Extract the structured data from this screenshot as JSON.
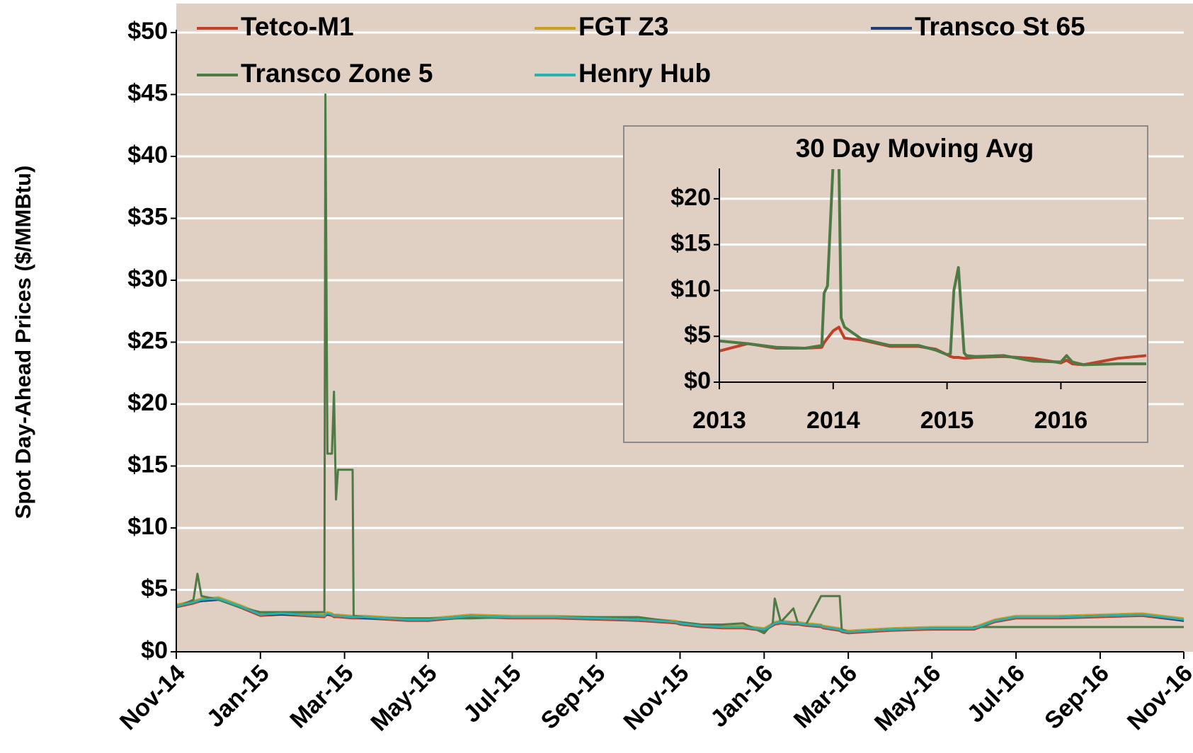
{
  "chart_data": [
    {
      "type": "line",
      "y_label": "Spot Day-Ahead Prices ($/MMBtu)",
      "legend": "top",
      "grid": true,
      "x": [
        2014.833,
        2014.867,
        2014.875,
        2014.883,
        2014.917,
        2014.958,
        2015.0,
        2015.042,
        2015.083,
        2015.125,
        2015.127,
        2015.129,
        2015.133,
        2015.142,
        2015.146,
        2015.15,
        2015.154,
        2015.183,
        2015.185,
        2015.208,
        2015.25,
        2015.292,
        2015.333,
        2015.417,
        2015.5,
        2015.583,
        2015.667,
        2015.75,
        2015.825,
        2015.833,
        2015.875,
        2015.917,
        2015.958,
        2016.0,
        2016.017,
        2016.021,
        2016.033,
        2016.058,
        2016.067,
        2016.083,
        2016.113,
        2016.117,
        2016.15,
        2016.154,
        2016.167,
        2016.25,
        2016.333,
        2016.415,
        2016.417,
        2016.458,
        2016.5,
        2016.583,
        2016.667,
        2016.75,
        2016.833
      ],
      "xlim": [
        2014.833,
        2016.833
      ],
      "xticks": [
        {
          "value": 2014.833,
          "label": "Nov-14"
        },
        {
          "value": 2015.0,
          "label": "Jan-15"
        },
        {
          "value": 2015.167,
          "label": "Mar-15"
        },
        {
          "value": 2015.333,
          "label": "May-15"
        },
        {
          "value": 2015.5,
          "label": "Jul-15"
        },
        {
          "value": 2015.667,
          "label": "Sep-15"
        },
        {
          "value": 2015.833,
          "label": "Nov-15"
        },
        {
          "value": 2016.0,
          "label": "Jan-16"
        },
        {
          "value": 2016.167,
          "label": "Mar-16"
        },
        {
          "value": 2016.333,
          "label": "May-16"
        },
        {
          "value": 2016.5,
          "label": "Jul-16"
        },
        {
          "value": 2016.667,
          "label": "Sep-16"
        },
        {
          "value": 2016.833,
          "label": "Nov-16"
        }
      ],
      "ylim": [
        0,
        50
      ],
      "yticks": [
        {
          "value": 0,
          "label": "$0"
        },
        {
          "value": 5,
          "label": "$5"
        },
        {
          "value": 10,
          "label": "$10"
        },
        {
          "value": 15,
          "label": "$15"
        },
        {
          "value": 20,
          "label": "$20"
        },
        {
          "value": 25,
          "label": "$25"
        },
        {
          "value": 30,
          "label": "$30"
        },
        {
          "value": 35,
          "label": "$35"
        },
        {
          "value": 40,
          "label": "$40"
        },
        {
          "value": 45,
          "label": "$45"
        },
        {
          "value": 50,
          "label": "$50"
        }
      ],
      "series": [
        {
          "name": "Tetco-M1",
          "color": "#c0402a",
          "values": [
            3.6,
            3.9,
            4.0,
            4.1,
            4.2,
            3.6,
            2.9,
            3.0,
            2.9,
            2.8,
            2.8,
            2.9,
            3.0,
            2.9,
            2.8,
            2.8,
            2.8,
            2.7,
            2.7,
            2.7,
            2.6,
            2.5,
            2.5,
            2.8,
            2.7,
            2.7,
            2.6,
            2.5,
            2.3,
            2.2,
            2.0,
            1.9,
            1.9,
            1.7,
            2.1,
            2.2,
            2.3,
            2.2,
            2.2,
            2.1,
            2.0,
            1.9,
            1.7,
            1.6,
            1.5,
            1.7,
            1.8,
            1.8,
            1.8,
            2.4,
            2.7,
            2.7,
            2.8,
            2.9,
            2.5
          ]
        },
        {
          "name": "FGT Z3",
          "color": "#c9a020",
          "values": [
            3.8,
            4.1,
            4.2,
            4.3,
            4.4,
            3.8,
            3.1,
            3.2,
            3.1,
            3.0,
            3.0,
            3.1,
            3.2,
            3.1,
            3.0,
            3.0,
            3.0,
            2.9,
            2.9,
            2.9,
            2.8,
            2.7,
            2.7,
            3.0,
            2.9,
            2.9,
            2.8,
            2.7,
            2.5,
            2.4,
            2.2,
            2.1,
            2.1,
            1.9,
            2.3,
            2.4,
            2.5,
            2.4,
            2.4,
            2.3,
            2.2,
            2.1,
            1.9,
            1.8,
            1.7,
            1.9,
            2.0,
            2.0,
            2.0,
            2.6,
            2.9,
            2.9,
            3.0,
            3.1,
            2.7
          ]
        },
        {
          "name": "Transco St 65",
          "color": "#1f3f7a",
          "values": [
            3.7,
            4.0,
            4.1,
            4.1,
            4.2,
            3.7,
            3.0,
            3.0,
            3.0,
            2.9,
            2.9,
            3.0,
            3.0,
            3.0,
            2.9,
            2.9,
            2.9,
            2.8,
            2.8,
            2.7,
            2.7,
            2.6,
            2.6,
            2.9,
            2.8,
            2.8,
            2.7,
            2.6,
            2.4,
            2.3,
            2.1,
            2.0,
            2.0,
            1.8,
            2.2,
            2.3,
            2.4,
            2.3,
            2.3,
            2.2,
            2.1,
            2.0,
            1.8,
            1.7,
            1.6,
            1.8,
            1.9,
            1.9,
            1.9,
            2.5,
            2.8,
            2.8,
            2.9,
            3.0,
            2.5
          ]
        },
        {
          "name": "Transco Zone 5",
          "color": "#4e7a45",
          "values": [
            3.6,
            4.2,
            6.3,
            4.5,
            4.2,
            3.6,
            3.2,
            3.2,
            3.2,
            3.2,
            3.2,
            45,
            16,
            16,
            21,
            12.3,
            14.7,
            14.7,
            2.9,
            2.8,
            2.7,
            2.7,
            2.7,
            2.7,
            2.8,
            2.8,
            2.8,
            2.8,
            2.4,
            2.4,
            2.2,
            2.2,
            2.3,
            1.5,
            2.3,
            4.3,
            2.4,
            3.5,
            2.3,
            2.2,
            4.5,
            4.5,
            4.5,
            1.8,
            1.6,
            1.8,
            1.9,
            1.9,
            2.0,
            2.0,
            2.0,
            2.0,
            2.0,
            2.0,
            2.0
          ]
        },
        {
          "name": "Henry Hub",
          "color": "#2ab0b0",
          "values": [
            3.7,
            4.0,
            4.1,
            4.2,
            4.3,
            3.7,
            3.0,
            3.1,
            3.0,
            2.9,
            2.9,
            3.0,
            3.1,
            3.0,
            2.9,
            2.9,
            2.9,
            2.8,
            2.8,
            2.8,
            2.7,
            2.6,
            2.6,
            2.9,
            2.8,
            2.8,
            2.7,
            2.6,
            2.4,
            2.3,
            2.1,
            2.0,
            2.0,
            1.8,
            2.2,
            2.3,
            2.4,
            2.3,
            2.3,
            2.2,
            2.1,
            2.0,
            1.8,
            1.7,
            1.6,
            1.8,
            1.9,
            1.9,
            1.9,
            2.5,
            2.8,
            2.8,
            2.9,
            3.0,
            2.6
          ]
        }
      ]
    },
    {
      "type": "line",
      "title": "30 Day Moving Avg",
      "grid": true,
      "x": [
        2013.0,
        2013.25,
        2013.5,
        2013.75,
        2013.9,
        2013.92,
        2013.95,
        2014.0,
        2014.05,
        2014.07,
        2014.1,
        2014.25,
        2014.5,
        2014.75,
        2014.9,
        2015.0,
        2015.03,
        2015.06,
        2015.1,
        2015.15,
        2015.17,
        2015.25,
        2015.5,
        2015.75,
        2016.0,
        2016.05,
        2016.1,
        2016.2,
        2016.5,
        2016.75
      ],
      "xlim": [
        2013,
        2016.75
      ],
      "xticks": [
        2013,
        2014,
        2015,
        2016
      ],
      "ylim": [
        0,
        23
      ],
      "yticks": [
        {
          "value": 0,
          "label": "$0"
        },
        {
          "value": 5,
          "label": "$5"
        },
        {
          "value": 10,
          "label": "$10"
        },
        {
          "value": 15,
          "label": "$15"
        },
        {
          "value": 20,
          "label": "$20"
        }
      ],
      "series": [
        {
          "color": "#c0402a",
          "values": [
            3.4,
            4.2,
            3.7,
            3.7,
            3.8,
            4.3,
            4.8,
            5.6,
            6.0,
            5.5,
            4.8,
            4.6,
            3.9,
            3.9,
            3.6,
            3.0,
            2.8,
            2.7,
            2.7,
            2.6,
            2.6,
            2.7,
            2.8,
            2.6,
            2.1,
            2.4,
            2.0,
            1.9,
            2.6,
            2.9
          ]
        },
        {
          "color": "#4e7a45",
          "values": [
            4.5,
            4.2,
            3.8,
            3.7,
            4.0,
            9.7,
            10.5,
            24,
            24,
            7,
            6,
            4.7,
            4.0,
            4.0,
            3.5,
            3.0,
            3.1,
            10,
            12.5,
            3.2,
            2.9,
            2.8,
            2.9,
            2.3,
            2.2,
            2.9,
            2.2,
            1.9,
            2.0,
            2.0
          ]
        }
      ]
    }
  ]
}
